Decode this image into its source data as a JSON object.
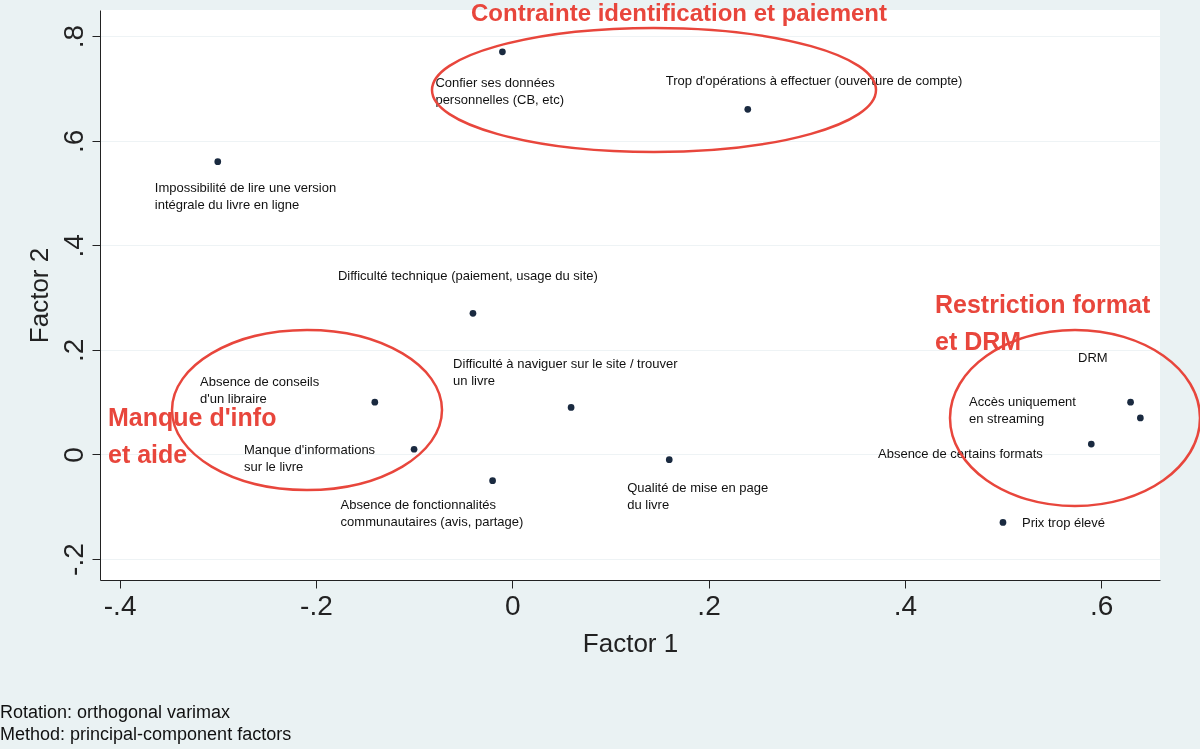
{
  "chart_data": {
    "type": "scatter",
    "xlabel": "Factor 1",
    "ylabel": "Factor 2",
    "xlim": [
      -0.42,
      0.66
    ],
    "ylim": [
      -0.24,
      0.85
    ],
    "xticks": [
      {
        "value": -0.4,
        "label": "-.4"
      },
      {
        "value": -0.2,
        "label": "-.2"
      },
      {
        "value": 0,
        "label": "0"
      },
      {
        "value": 0.2,
        "label": ".2"
      },
      {
        "value": 0.4,
        "label": ".4"
      },
      {
        "value": 0.6,
        "label": ".6"
      }
    ],
    "yticks": [
      {
        "value": -0.2,
        "label": "-.2"
      },
      {
        "value": 0,
        "label": "0"
      },
      {
        "value": 0.2,
        "label": ".2"
      },
      {
        "value": 0.4,
        "label": ".4"
      },
      {
        "value": 0.6,
        "label": ".6"
      },
      {
        "value": 0.8,
        "label": ".8"
      }
    ],
    "grid": "y",
    "marker": "circle",
    "series": [
      {
        "color": "#1a2a40",
        "x": [
          -0.3,
          -0.01,
          0.24,
          -0.04,
          -0.14,
          -0.1,
          0.06,
          -0.02,
          0.16,
          0.63,
          0.64,
          0.59,
          0.5
        ],
        "values": [
          0.56,
          0.77,
          0.66,
          0.27,
          0.1,
          0.01,
          0.09,
          -0.05,
          -0.01,
          0.1,
          0.07,
          0.02,
          -0.13
        ]
      }
    ],
    "annotations": [
      {
        "text": "Impossibilité de lire une version\nintégrale du livre en ligne",
        "x": -0.3,
        "y": 0.56
      },
      {
        "text": "Confier ses données\npersonnelles (CB, etc)",
        "x": -0.01,
        "y": 0.77
      },
      {
        "text": "Trop d'opérations à effectuer (ouverture de compte)",
        "x": 0.24,
        "y": 0.66
      },
      {
        "text": "Difficulté technique (paiement, usage du site)",
        "x": -0.04,
        "y": 0.27
      },
      "Absence de conseils\nd'un libraire",
      "Manque d'informations\nsur le livre",
      {
        "text": "Difficulté à naviguer sur le site / trouver\nun livre",
        "x": 0.06,
        "y": 0.09
      },
      {
        "text": "Absence de fonctionnalités\ncommunautaires (avis, partage)",
        "x": -0.02,
        "y": -0.05
      },
      {
        "text": "Qualité de mise en page\ndu livre",
        "x": 0.16,
        "y": -0.01
      },
      "DRM",
      "Accès uniquement\nen streaming",
      "Absence de certains formats",
      {
        "text": "Prix trop élevé",
        "x": 0.5,
        "y": -0.13
      },
      "Contrainte identification et paiement",
      "Restriction format\net DRM",
      "Manque d'info\net aide",
      "Rotation: orthogonal varimax",
      "Method: principal-component factors"
    ]
  }
}
